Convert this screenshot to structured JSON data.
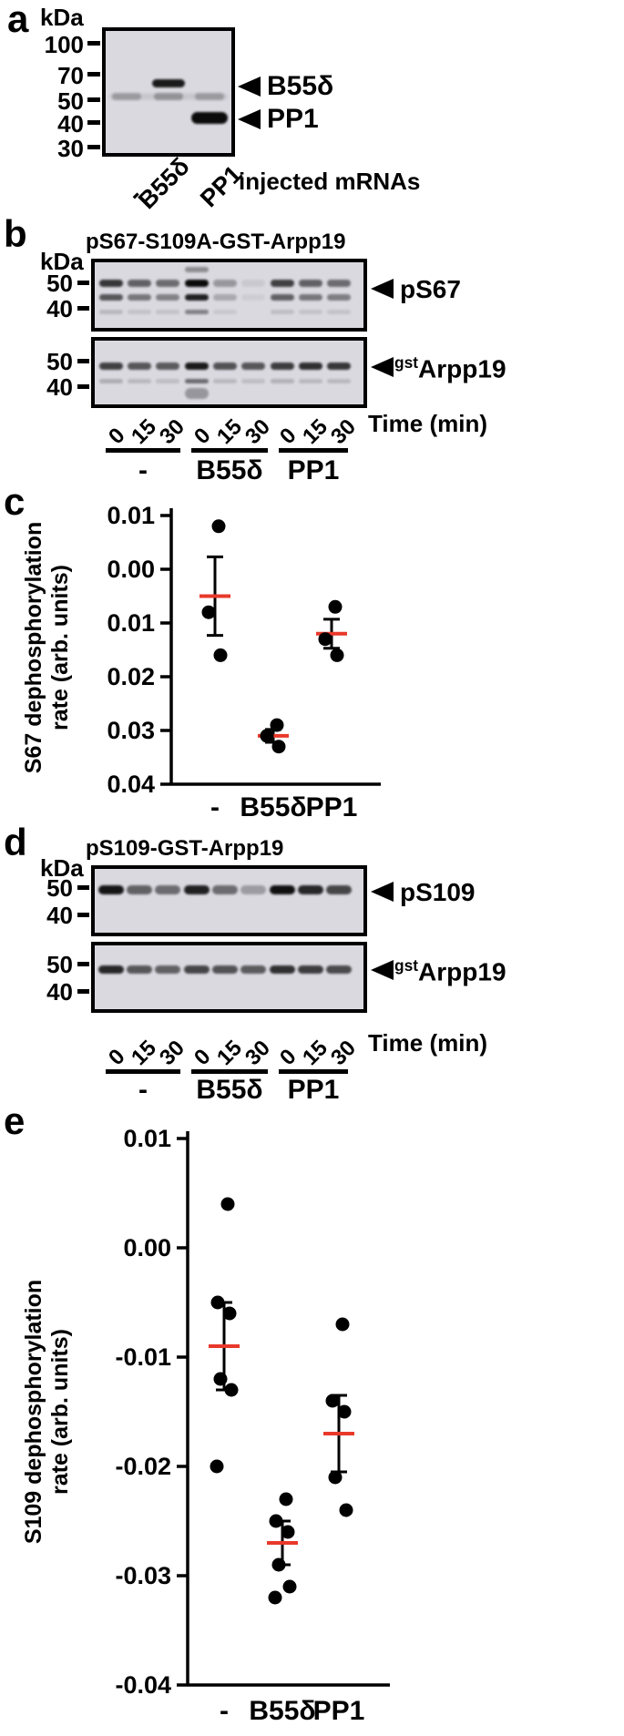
{
  "figure": {
    "panels": {
      "a": {
        "label": "a",
        "kda": "kDa",
        "markers": [
          "100",
          "70",
          "50",
          "40",
          "30"
        ],
        "arrow_labels": [
          "B55δ",
          "PP1"
        ],
        "lane_labels": [
          "-",
          "B55δ",
          "PP1"
        ],
        "axis_note": "injected mRNAs"
      },
      "b": {
        "label": "b",
        "title": "pS67-S109A-GST-Arpp19",
        "kda": "kDa",
        "blot1_markers": [
          "50",
          "40"
        ],
        "blot2_markers": [
          "50",
          "40"
        ],
        "arrow1_label": "pS67",
        "arrow2_sup": "gst",
        "arrow2_label": "Arpp19",
        "time_labels": [
          "0",
          "15",
          "30",
          "0",
          "15",
          "30",
          "0",
          "15",
          "30"
        ],
        "time_axis": "Time (min)",
        "group_labels": [
          "-",
          "B55δ",
          "PP1"
        ]
      },
      "c": {
        "label": "c"
      },
      "d": {
        "label": "d",
        "title": "pS109-GST-Arpp19",
        "kda": "kDa",
        "blot1_markers": [
          "50",
          "40"
        ],
        "blot2_markers": [
          "50",
          "40"
        ],
        "arrow1_label": "pS109",
        "arrow2_sup": "gst",
        "arrow2_label": "Arpp19",
        "time_labels": [
          "0",
          "15",
          "30",
          "0",
          "15",
          "30",
          "0",
          "15",
          "30"
        ],
        "time_axis": "Time (min)",
        "group_labels": [
          "-",
          "B55δ",
          "PP1"
        ]
      },
      "e": {
        "label": "e"
      }
    }
  },
  "chart_data": [
    {
      "id": "c",
      "type": "scatter",
      "title": "",
      "ylabel": "S67 dephosphorylation rate (arb. units)",
      "ylabel_lines": [
        "S67 dephosphorylation",
        "rate (arb. units)"
      ],
      "xlabel": "",
      "categories": [
        "-",
        "B55δ",
        "PP1"
      ],
      "ylim": [
        -0.04,
        0.01
      ],
      "yticks": [
        0.01,
        0,
        -0.01,
        -0.02,
        -0.03,
        -0.04
      ],
      "ytick_labels": [
        "0.01",
        "0.00",
        "-0.01",
        "-0.02",
        "-0.03",
        "-0.04"
      ],
      "series": [
        {
          "name": "-",
          "points": [
            0.008,
            -0.008,
            -0.016
          ],
          "mean": -0.005,
          "sem": 0.0073
        },
        {
          "name": "B55δ",
          "points": [
            -0.029,
            -0.031,
            -0.033
          ],
          "mean": -0.031,
          "sem": 0.0012
        },
        {
          "name": "PP1",
          "points": [
            -0.007,
            -0.013,
            -0.016
          ],
          "mean": -0.012,
          "sem": 0.0027
        }
      ],
      "point_color": "#000000",
      "mean_color": "#e8392a",
      "legend": "none",
      "grid": false
    },
    {
      "id": "e",
      "type": "scatter",
      "title": "",
      "ylabel": "S109 dephosphorylation rate (arb. units)",
      "ylabel_lines": [
        "S109 dephosphorylation",
        "rate (arb. units)"
      ],
      "xlabel": "",
      "categories": [
        "-",
        "B55δ",
        "PP1"
      ],
      "ylim": [
        -0.04,
        0.01
      ],
      "yticks": [
        0.01,
        0,
        -0.01,
        -0.02,
        -0.03,
        -0.04
      ],
      "ytick_labels": [
        "0.01",
        "0.00",
        "-0.01",
        "-0.02",
        "-0.03",
        "-0.04"
      ],
      "series": [
        {
          "name": "-",
          "points": [
            0.004,
            -0.005,
            -0.006,
            -0.012,
            -0.013,
            -0.02
          ],
          "mean": -0.009,
          "sem": 0.004
        },
        {
          "name": "B55δ",
          "points": [
            -0.023,
            -0.025,
            -0.026,
            -0.029,
            -0.031,
            -0.032
          ],
          "mean": -0.027,
          "sem": 0.002
        },
        {
          "name": "PP1",
          "points": [
            -0.007,
            -0.014,
            -0.015,
            -0.021,
            -0.024
          ],
          "mean": -0.017,
          "sem": 0.0035
        }
      ],
      "point_color": "#000000",
      "mean_color": "#e8392a",
      "legend": "none",
      "grid": false
    }
  ]
}
